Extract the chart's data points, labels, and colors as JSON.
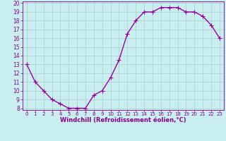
{
  "x": [
    0,
    1,
    2,
    3,
    4,
    5,
    6,
    7,
    8,
    9,
    10,
    11,
    12,
    13,
    14,
    15,
    16,
    17,
    18,
    19,
    20,
    21,
    22,
    23
  ],
  "y": [
    13,
    11,
    10,
    9,
    8.5,
    8,
    8,
    8,
    9.5,
    10,
    11.5,
    13.5,
    16.5,
    18,
    19,
    19,
    19.5,
    19.5,
    19.5,
    19,
    19,
    18.5,
    17.5,
    16
  ],
  "line_color": "#990099",
  "marker": "+",
  "marker_size": 4,
  "bg_color": "#c8eef0",
  "grid_color": "#aacccc",
  "xlabel": "Windchill (Refroidissement éolien,°C)",
  "xlabel_color": "#880088",
  "tick_color": "#880088",
  "ylim": [
    8,
    20
  ],
  "xlim": [
    -0.5,
    23.5
  ],
  "yticks": [
    8,
    9,
    10,
    11,
    12,
    13,
    14,
    15,
    16,
    17,
    18,
    19,
    20
  ],
  "xticks": [
    0,
    1,
    2,
    3,
    4,
    5,
    6,
    7,
    8,
    9,
    10,
    11,
    12,
    13,
    14,
    15,
    16,
    17,
    18,
    19,
    20,
    21,
    22,
    23
  ],
  "line_width": 1.0,
  "marker_linewidth": 1.0
}
